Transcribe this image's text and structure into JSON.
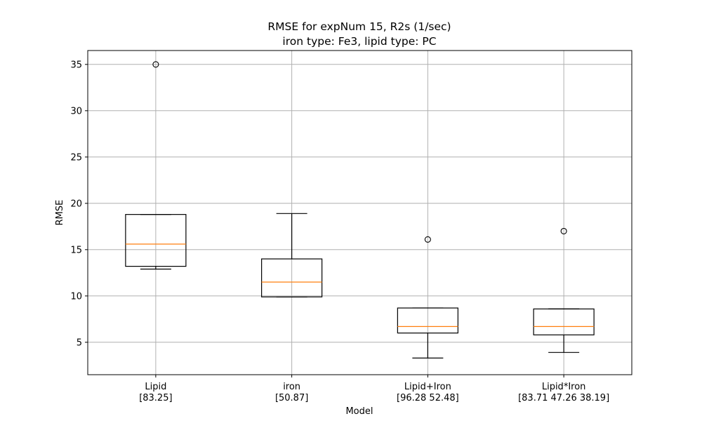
{
  "chart_data": {
    "type": "boxplot",
    "title_lines": [
      "RMSE for expNum 15, R2s (1/sec)",
      "iron type: Fe3, lipid type: PC"
    ],
    "xlabel": "Model",
    "ylabel": "RMSE",
    "ylim": [
      1.5,
      36.5
    ],
    "yticks": [
      5,
      10,
      15,
      20,
      25,
      30,
      35
    ],
    "grid": true,
    "categories": [
      {
        "label": "Lipid",
        "sublabel": "[83.25]"
      },
      {
        "label": "iron",
        "sublabel": "[50.87]"
      },
      {
        "label": "Lipid+Iron",
        "sublabel": "[96.28 52.48]"
      },
      {
        "label": "Lipid*Iron",
        "sublabel": "[83.71 47.26 38.19]"
      }
    ],
    "boxes": [
      {
        "whisker_low": 12.9,
        "q1": 13.2,
        "median": 15.6,
        "q3": 18.8,
        "whisker_high": 18.8,
        "outliers": [
          35.0
        ]
      },
      {
        "whisker_low": 9.9,
        "q1": 9.9,
        "median": 11.5,
        "q3": 14.0,
        "whisker_high": 18.9,
        "outliers": []
      },
      {
        "whisker_low": 3.3,
        "q1": 6.0,
        "median": 6.7,
        "q3": 8.7,
        "whisker_high": 8.7,
        "outliers": [
          16.1
        ]
      },
      {
        "whisker_low": 3.9,
        "q1": 5.8,
        "median": 6.7,
        "q3": 8.6,
        "whisker_high": 8.6,
        "outliers": [
          17.0
        ]
      }
    ],
    "colors": {
      "box": "#000000",
      "median": "#ff7f0e",
      "grid": "#b0b0b0"
    }
  }
}
